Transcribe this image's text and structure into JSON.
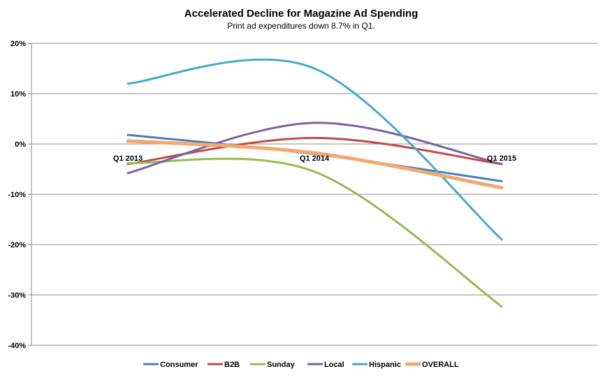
{
  "chart_data": {
    "type": "line",
    "title": "Accelerated Decline for Magazine Ad Spending",
    "subtitle": "Print ad expenditures down 8.7% in Q1.",
    "categories": [
      "Q1 2013",
      "Q1 2014",
      "Q1 2015"
    ],
    "y_ticks": [
      "20%",
      "10%",
      "0%",
      "-10%",
      "-20%",
      "-30%",
      "-40%"
    ],
    "ylim": [
      -40,
      20
    ],
    "legend_position": "bottom",
    "series": [
      {
        "name": "Consumer",
        "color": "#4a7ebb",
        "values": [
          1.8,
          -2.0,
          -7.4
        ]
      },
      {
        "name": "B2B",
        "color": "#be4b48",
        "values": [
          -4.0,
          1.2,
          -4.0
        ]
      },
      {
        "name": "Sunday",
        "color": "#98b954",
        "values": [
          -3.8,
          -5.5,
          -32.3
        ]
      },
      {
        "name": "Local",
        "color": "#7d60a0",
        "values": [
          -5.8,
          4.2,
          -4.0
        ]
      },
      {
        "name": "Hispanic",
        "color": "#46aac5",
        "values": [
          12.0,
          15.0,
          -19.0
        ]
      },
      {
        "name": "OVERALL",
        "color": "#f2a86f",
        "values": [
          0.6,
          -1.8,
          -8.7
        ]
      }
    ]
  }
}
